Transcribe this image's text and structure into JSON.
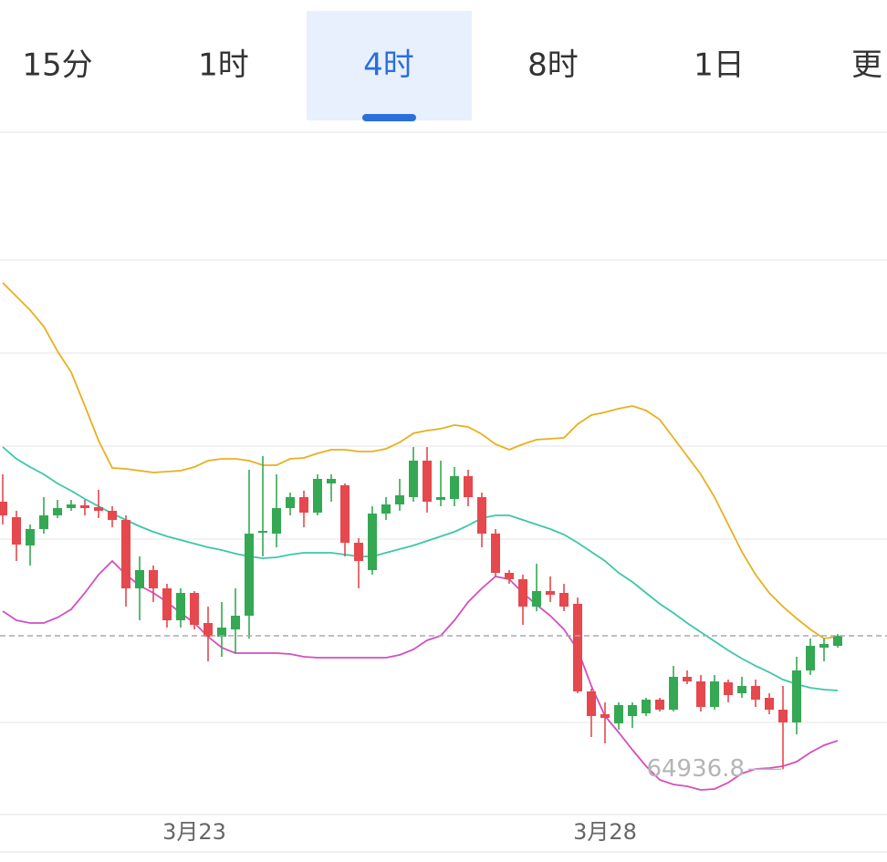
{
  "tabs": [
    "15分",
    "1时",
    "4时",
    "8时",
    "1日",
    "更"
  ],
  "selected_tab": 2,
  "chart_data": {
    "type": "candlestick",
    "categories": [
      null,
      null,
      null,
      null,
      null,
      null,
      null,
      null,
      null,
      null,
      null,
      null,
      null,
      null,
      "3月23",
      null,
      null,
      null,
      null,
      null,
      null,
      null,
      null,
      null,
      null,
      null,
      null,
      null,
      null,
      null,
      null,
      null,
      null,
      null,
      null,
      null,
      null,
      null,
      null,
      null,
      null,
      null,
      null,
      null,
      "3月28",
      null,
      null,
      null,
      null,
      null,
      null,
      null,
      null,
      null,
      null,
      null,
      null,
      null,
      null,
      null,
      null,
      null
    ],
    "open": [
      67870,
      67700,
      67390,
      67570,
      67720,
      67800,
      67830,
      67810,
      67770,
      67670,
      66920,
      67120,
      66920,
      66570,
      66870,
      66540,
      66390,
      66470,
      66620,
      67530,
      67520,
      67800,
      67920,
      67750,
      68070,
      68050,
      67420,
      67120,
      67740,
      67840,
      67920,
      68320,
      67890,
      67900,
      68150,
      67920,
      67520,
      67090,
      67020,
      66720,
      66890,
      66870,
      66750,
      65790,
      65540,
      65440,
      65520,
      65550,
      65700,
      65590,
      65950,
      65900,
      65620,
      65890,
      65770,
      65850,
      65720,
      65590,
      65450,
      66020,
      66270,
      66290
    ],
    "high": [
      68170,
      67770,
      67620,
      67920,
      67890,
      67890,
      67890,
      68000,
      67820,
      67720,
      67270,
      67170,
      66970,
      66920,
      66890,
      66720,
      66770,
      66920,
      68220,
      68370,
      68170,
      67970,
      67990,
      68170,
      68170,
      68070,
      67470,
      67820,
      67920,
      68120,
      68470,
      68470,
      68320,
      68250,
      68220,
      67970,
      67570,
      67120,
      67070,
      67190,
      67050,
      66970,
      66820,
      65820,
      65670,
      65670,
      65670,
      65720,
      65720,
      66070,
      66020,
      65970,
      65970,
      65920,
      65950,
      65920,
      65770,
      65850,
      66170,
      66370,
      66370,
      66420
    ],
    "low": [
      67620,
      67220,
      67170,
      67520,
      67690,
      67770,
      67720,
      67690,
      67590,
      66720,
      66570,
      66770,
      66490,
      66490,
      66470,
      66120,
      66170,
      66200,
      66370,
      67270,
      67370,
      67720,
      67590,
      67720,
      67870,
      67270,
      66920,
      67070,
      67670,
      67770,
      67870,
      67750,
      67820,
      67820,
      67820,
      67370,
      67050,
      66970,
      66520,
      66670,
      66770,
      66670,
      65770,
      65290,
      65220,
      65370,
      65390,
      65520,
      65570,
      65570,
      65870,
      65570,
      65590,
      65670,
      65720,
      65620,
      65540,
      64936.8,
      65320,
      65970,
      66120,
      66270
    ],
    "close": [
      67720,
      67400,
      67570,
      67720,
      67800,
      67840,
      67800,
      67770,
      67670,
      66920,
      67120,
      66920,
      66570,
      66870,
      66520,
      66390,
      66490,
      66620,
      67520,
      67550,
      67800,
      67920,
      67750,
      68120,
      68120,
      67420,
      67220,
      67740,
      67840,
      67940,
      68320,
      67870,
      67920,
      68150,
      67920,
      67520,
      67090,
      67020,
      66720,
      66890,
      66850,
      66720,
      65790,
      65520,
      65500,
      65640,
      65640,
      65700,
      65590,
      65950,
      65900,
      65620,
      65900,
      65750,
      65850,
      65700,
      65590,
      65450,
      66020,
      66290,
      66310,
      66400
    ],
    "up_color": "#34a853",
    "down_color": "#e5484d",
    "bands": [
      {
        "color": "#e8b020",
        "values": [
          70270,
          70120,
          69970,
          69790,
          69520,
          69290,
          68920,
          68540,
          68240,
          68230,
          68210,
          68190,
          68200,
          68210,
          68250,
          68320,
          68340,
          68340,
          68320,
          68270,
          68270,
          68340,
          68350,
          68400,
          68440,
          68440,
          68420,
          68420,
          68450,
          68520,
          68620,
          68650,
          68670,
          68710,
          68690,
          68610,
          68500,
          68440,
          68500,
          68550,
          68560,
          68570,
          68720,
          68820,
          68850,
          68890,
          68920,
          68870,
          68770,
          68570,
          68370,
          68170,
          67920,
          67620,
          67320,
          67070,
          66870,
          66720,
          66590,
          66470,
          66370,
          66390
        ]
      },
      {
        "color": "#3cc7a8",
        "values": [
          68470,
          68340,
          68250,
          68170,
          68070,
          67990,
          67900,
          67820,
          67740,
          67670,
          67600,
          67540,
          67490,
          67450,
          67410,
          67370,
          67340,
          67300,
          67270,
          67250,
          67260,
          67290,
          67310,
          67310,
          67310,
          67290,
          67270,
          67270,
          67310,
          67350,
          67390,
          67440,
          67490,
          67540,
          67610,
          67690,
          67720,
          67720,
          67670,
          67620,
          67570,
          67510,
          67420,
          67320,
          67220,
          67090,
          66990,
          66870,
          66750,
          66650,
          66540,
          66440,
          66340,
          66240,
          66150,
          66070,
          66000,
          65920,
          65870,
          65830,
          65810,
          65800
        ]
      },
      {
        "color": "#d34fc0",
        "values": [
          66670,
          66570,
          66540,
          66540,
          66600,
          66690,
          66870,
          67070,
          67220,
          67070,
          66950,
          66870,
          66770,
          66650,
          66540,
          66390,
          66270,
          66210,
          66210,
          66210,
          66210,
          66200,
          66170,
          66160,
          66160,
          66160,
          66160,
          66160,
          66160,
          66190,
          66250,
          66350,
          66400,
          66570,
          66770,
          66920,
          67050,
          67020,
          66870,
          66740,
          66620,
          66470,
          66250,
          65850,
          65520,
          65340,
          65150,
          64970,
          64820,
          64770,
          64750,
          64710,
          64720,
          64790,
          64890,
          64940,
          64950,
          64970,
          65020,
          65120,
          65200,
          65250
        ]
      }
    ],
    "ylim": [
      64440,
      71920
    ],
    "low_label_index": 57
  }
}
